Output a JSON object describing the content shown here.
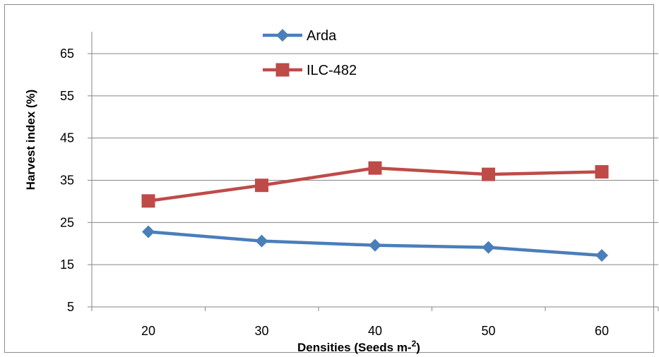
{
  "chart_data": {
    "type": "line",
    "x": [
      20,
      30,
      40,
      50,
      60
    ],
    "series": [
      {
        "name": "Arda",
        "values": [
          22.8,
          20.6,
          19.6,
          19.1,
          17.2
        ],
        "color": "#4a7ebb",
        "marker": "diamond"
      },
      {
        "name": "ILC-482",
        "values": [
          30.1,
          33.8,
          37.9,
          36.4,
          37.0
        ],
        "color": "#be4b48",
        "marker": "square"
      }
    ],
    "xlabel": "Densities (Seeds m-",
    "xlabel_sup": "2",
    "xlabel_end": ")",
    "ylabel": "Harvest index (%)",
    "yticks": [
      5,
      15,
      25,
      35,
      45,
      55,
      65
    ],
    "ylim": [
      5,
      70
    ],
    "grid": true,
    "legend_position": "top-center"
  }
}
